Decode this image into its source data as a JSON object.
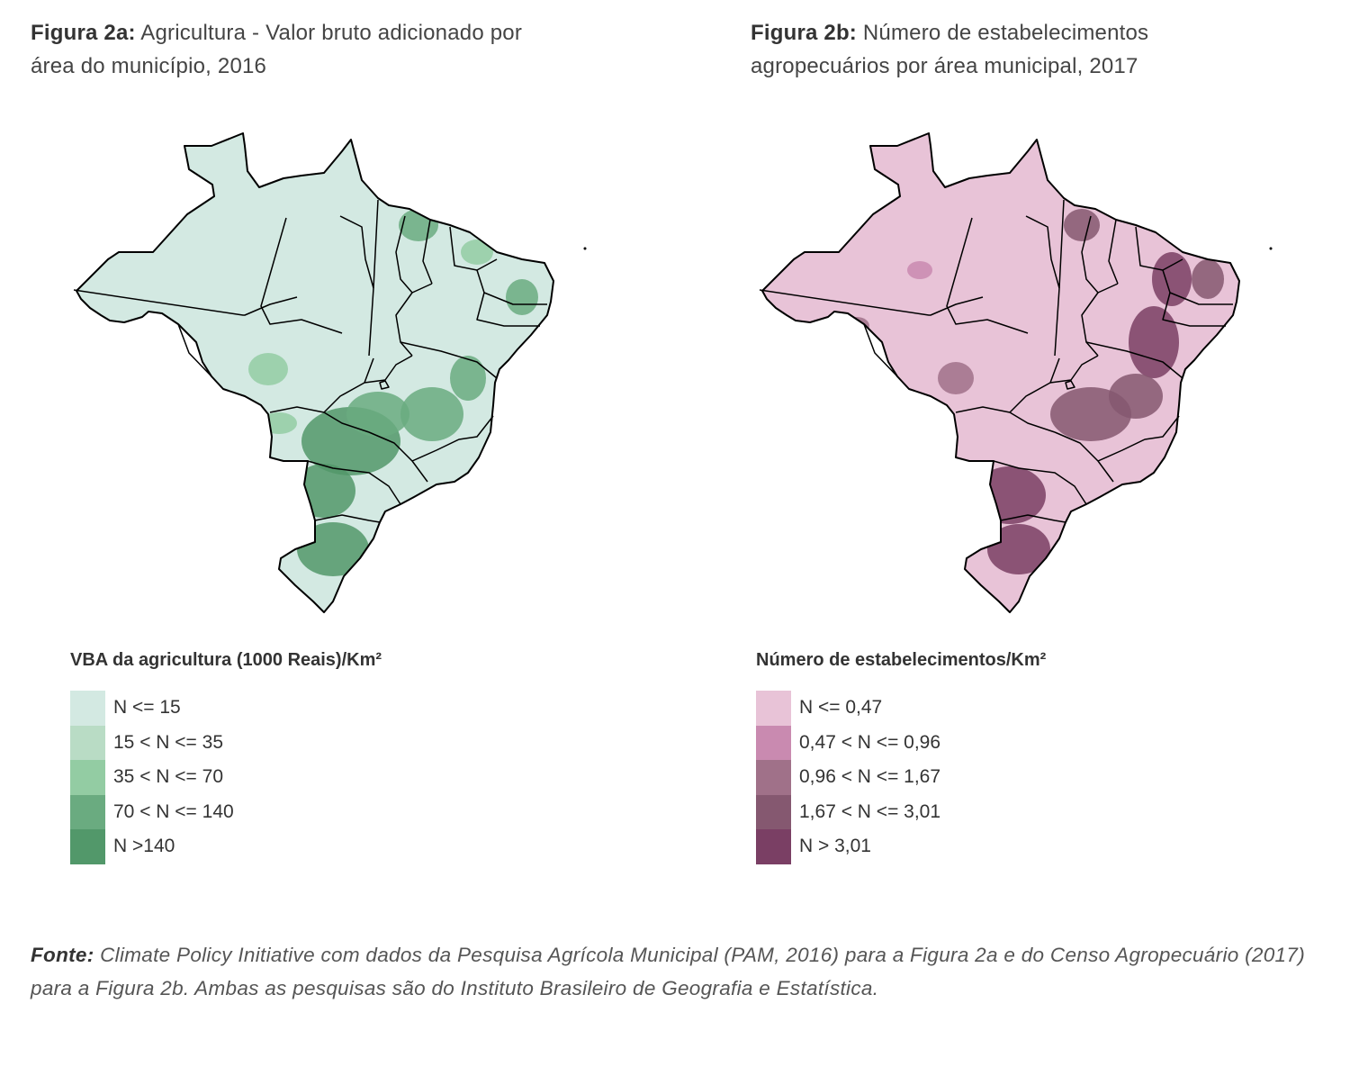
{
  "figures": [
    {
      "label": "Figura 2a:",
      "title": "Agricultura - Valor bruto adicionado por área do município, 2016",
      "legend_title": "VBA da agricultura (1000 Reais)/Km²",
      "base_color": "#d3e9e2",
      "state_color": "#000000",
      "legend": [
        {
          "label": "N <= 15",
          "color": "#d3e9e2"
        },
        {
          "label": "15 < N <= 35",
          "color": "#b9dcc5"
        },
        {
          "label": "35 < N <= 70",
          "color": "#93cca3"
        },
        {
          "label": "70 < N <= 140",
          "color": "#6aab80"
        },
        {
          "label": "N >140",
          "color": "#52986a"
        }
      ]
    },
    {
      "label": "Figura 2b:",
      "title": "Número de estabelecimentos agropecuários por área municipal, 2017",
      "legend_title": "Número de estabelecimentos/Km²",
      "base_color": "#e8c3d7",
      "state_color": "#000000",
      "legend": [
        {
          "label": "N <= 0,47",
          "color": "#e8c3d7"
        },
        {
          "label": "0,47 < N <= 0,96",
          "color": "#c98ab0"
        },
        {
          "label": "0,96 < N <= 1,67",
          "color": "#a07189"
        },
        {
          "label": "1,67 < N <= 3,01",
          "color": "#855870"
        },
        {
          "label": "N > 3,01",
          "color": "#7a3f64"
        }
      ]
    }
  ],
  "source": {
    "label": "Fonte:",
    "text": "Climate Policy Initiative com dados da Pesquisa Agrícola Municipal (PAM, 2016) para a Figura 2a e do Censo Agropecuário (2017) para a Figura 2b. Ambas as pesquisas são do Instituto Brasileiro de Geografia e Estatística."
  }
}
